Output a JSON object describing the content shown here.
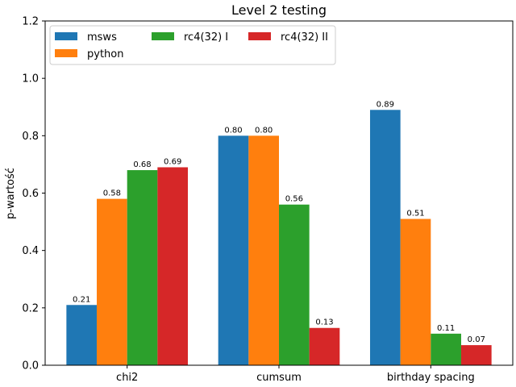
{
  "chart_data": {
    "type": "bar",
    "title": "Level 2 testing",
    "xlabel": "",
    "ylabel": "p-wartość",
    "categories": [
      "chi2",
      "cumsum",
      "birthday spacing"
    ],
    "series": [
      {
        "name": "msws",
        "values": [
          0.21,
          0.8,
          0.89
        ],
        "labels": [
          "0.21",
          "0.80",
          "0.89"
        ],
        "color": "#1f77b4"
      },
      {
        "name": "python",
        "values": [
          0.58,
          0.8,
          0.51
        ],
        "labels": [
          "0.58",
          "0.80",
          "0.51"
        ],
        "color": "#ff7f0e"
      },
      {
        "name": "rc4(32) I",
        "values": [
          0.68,
          0.56,
          0.11
        ],
        "labels": [
          "0.68",
          "0.56",
          "0.11"
        ],
        "color": "#2ca02c"
      },
      {
        "name": "rc4(32) II",
        "values": [
          0.69,
          0.13,
          0.07
        ],
        "labels": [
          "0.69",
          "0.13",
          "0.07"
        ],
        "color": "#d62728"
      }
    ],
    "ylim": [
      0,
      1.2
    ],
    "yticks": [
      "0.0",
      "0.2",
      "0.4",
      "0.6",
      "0.8",
      "1.0",
      "1.2"
    ],
    "grid": false,
    "legend": {
      "placement": "upper-left",
      "columns": 3
    }
  }
}
